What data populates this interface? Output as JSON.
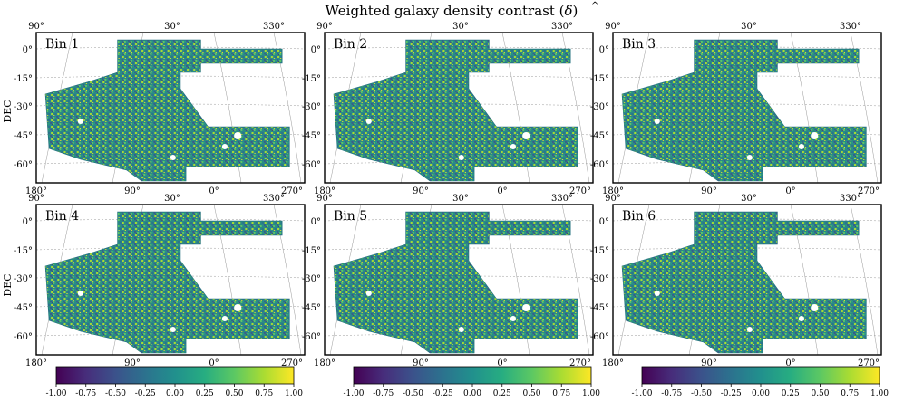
{
  "figure": {
    "title": "Weighted galaxy density contrast ($\\hat{\\delta}$)",
    "title_text": "Weighted galaxy density contrast (",
    "title_symbol": "δ",
    "title_hat": "^",
    "title_close": ")",
    "ylabel": "DEC"
  },
  "chart_data": {
    "type": "heatmap",
    "projection": "sky map (RA/DEC)",
    "panels": [
      {
        "label": "Bin 1"
      },
      {
        "label": "Bin 2"
      },
      {
        "label": "Bin 3"
      },
      {
        "label": "Bin 4"
      },
      {
        "label": "Bin 5"
      },
      {
        "label": "Bin 6"
      }
    ],
    "ra_top_ticks": [
      "90°",
      "30°",
      "330°"
    ],
    "ra_bottom_ticks": [
      "180°",
      "90°",
      "0°",
      "270°"
    ],
    "dec_ticks": [
      "0°",
      "-15°",
      "-30°",
      "-45°",
      "-60°"
    ],
    "dec_values": [
      0,
      -15,
      -30,
      -45,
      -60
    ],
    "colorbar": {
      "colormap": "viridis",
      "range": [
        -1.0,
        1.0
      ],
      "ticks": [
        "-1.00",
        "-0.75",
        "-0.50",
        "-0.25",
        "0.00",
        "0.25",
        "0.50",
        "0.75",
        "1.00"
      ]
    }
  },
  "colors": {
    "low": "#440154",
    "mid": "#21908d",
    "high": "#fde725"
  }
}
